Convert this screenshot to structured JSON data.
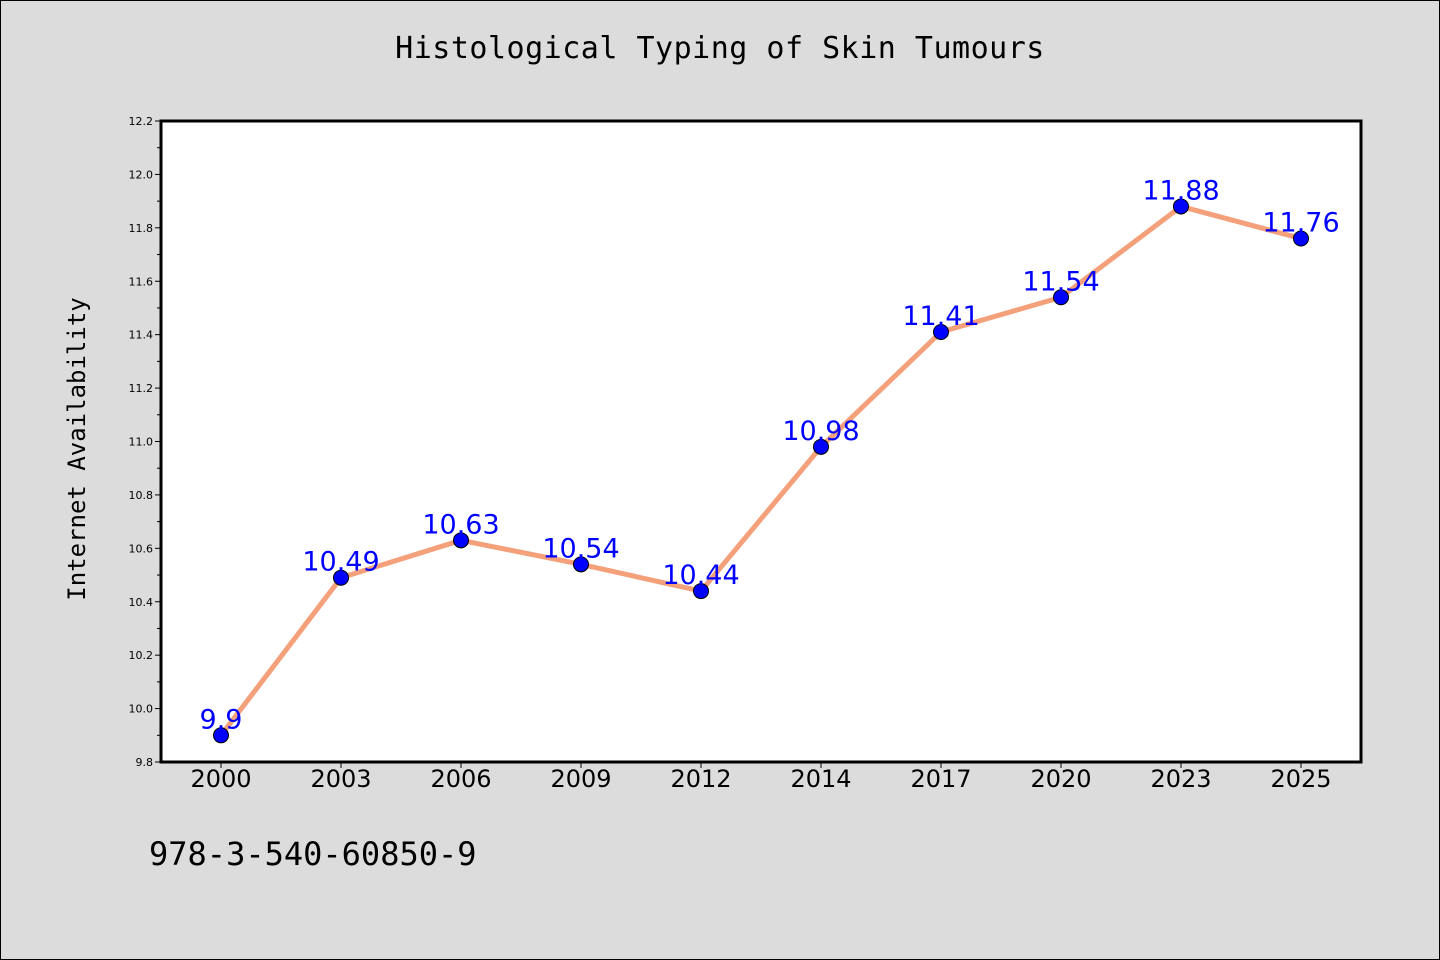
{
  "chart_data": {
    "type": "line",
    "title": "Histological Typing of Skin Tumours",
    "xlabel": "",
    "ylabel": "Internet Availability",
    "categories": [
      "2000",
      "2003",
      "2006",
      "2009",
      "2012",
      "2014",
      "2017",
      "2020",
      "2023",
      "2025"
    ],
    "series": [
      {
        "values": [
          9.9,
          10.49,
          10.63,
          10.54,
          10.44,
          10.98,
          11.41,
          11.54,
          11.88,
          11.76
        ],
        "labels": [
          "9.9",
          "10.49",
          "10.63",
          "10.54",
          "10.44",
          "10.98",
          "11.41",
          "11.54",
          "11.88",
          "11.76"
        ],
        "line_color": "#f4a07a",
        "marker_color": "#0000ff",
        "label_color": "#0000ff"
      }
    ],
    "ylim": [
      9.8,
      12.2
    ],
    "yticks": [
      "9.8",
      "10.0",
      "10.2",
      "10.4",
      "10.6",
      "10.8",
      "11.0",
      "11.2",
      "11.4",
      "11.6",
      "11.8",
      "12.0",
      "12.2"
    ],
    "grid": false,
    "legend": "none"
  },
  "footer": {
    "code": "978-3-540-60850-9"
  },
  "colors": {
    "background": "#dcdcdc",
    "plot_area": "#ffffff"
  }
}
